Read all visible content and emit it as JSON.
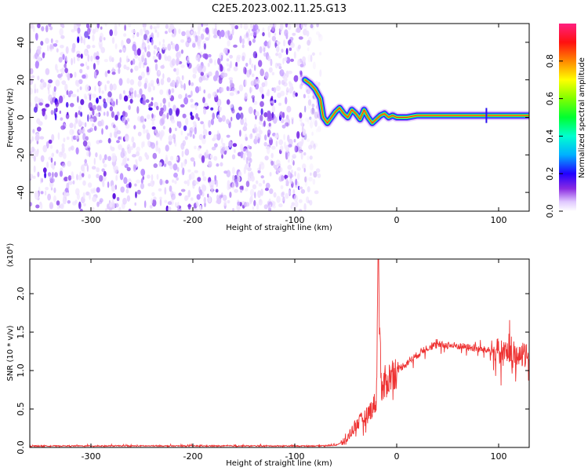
{
  "figure_title": "C2E5.2023.002.11.25.G13",
  "colorbar": {
    "label": "Normalized spectral amplitude",
    "ticks": [
      "0.0",
      "0.2",
      "0.4",
      "0.6",
      "0.8"
    ],
    "tick_values": [
      0.0,
      0.2,
      0.4,
      0.6,
      0.8
    ],
    "range": [
      0.0,
      1.0
    ]
  },
  "chart_data": [
    {
      "type": "heatmap",
      "xlabel": "Height of straight line (km)",
      "ylabel": "Frequency (Hz)",
      "xlim": [
        -360,
        130
      ],
      "ylim": [
        -50,
        50
      ],
      "xticks": [
        -300,
        -200,
        -100,
        0,
        100
      ],
      "yticks": [
        -40,
        -20,
        0,
        20,
        40
      ],
      "noise_region_x": [
        -360,
        -90
      ],
      "noise_band_center_hz": 5,
      "ridge": {
        "x": [
          -90,
          -85,
          -80,
          -75,
          -72,
          -68,
          -64,
          -60,
          -56,
          -52,
          -48,
          -44,
          -40,
          -36,
          -32,
          -28,
          -24,
          -20,
          -16,
          -12,
          -8,
          -4,
          0,
          10,
          20,
          40,
          60,
          90,
          130
        ],
        "y": [
          20,
          18,
          15,
          10,
          0,
          -3,
          0,
          3,
          5,
          2,
          0,
          4,
          2,
          -1,
          4,
          0,
          -3,
          -1,
          1,
          2,
          0,
          1,
          0,
          0,
          1,
          1,
          1,
          1,
          1
        ]
      }
    },
    {
      "type": "line",
      "xlabel": "Height of straight line (km)",
      "ylabel": "SNR (10 * v/v)",
      "yscale_label": "(x10⁴)",
      "xlim": [
        -360,
        130
      ],
      "ylim": [
        0,
        2.45
      ],
      "xticks": [
        -300,
        -200,
        -100,
        0,
        100
      ],
      "yticks": [
        0.0,
        0.5,
        1.0,
        1.5,
        2.0
      ],
      "ytick_labels": [
        "0.0",
        "0.5",
        "1.0",
        "1.5",
        "2.0"
      ],
      "series": [
        {
          "color": "#ee3333",
          "x": [
            -360,
            -300,
            -200,
            -120,
            -80,
            -60,
            -50,
            -45,
            -40,
            -35,
            -30,
            -25,
            -20,
            -18,
            -15,
            -10,
            -5,
            0,
            10,
            20,
            30,
            40,
            50,
            60,
            70,
            80,
            90,
            100,
            110,
            120,
            130
          ],
          "y": [
            0.02,
            0.02,
            0.02,
            0.02,
            0.02,
            0.03,
            0.08,
            0.2,
            0.3,
            0.35,
            0.4,
            0.5,
            0.6,
            2.45,
            0.7,
            0.85,
            0.95,
            1.0,
            1.1,
            1.2,
            1.3,
            1.33,
            1.33,
            1.32,
            1.3,
            1.28,
            1.26,
            1.25,
            1.22,
            1.2,
            1.18
          ]
        }
      ]
    }
  ]
}
